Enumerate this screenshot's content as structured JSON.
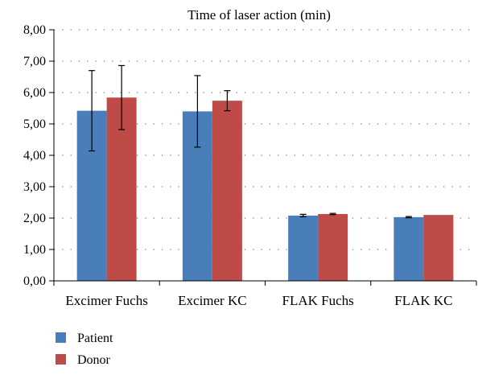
{
  "chart_data": {
    "type": "bar",
    "title": "Time of laser action (min)",
    "xlabel": "",
    "ylabel": "",
    "categories": [
      "Excimer Fuchs",
      "Excimer KC",
      "FLAK Fuchs",
      "FLAK KC"
    ],
    "series": [
      {
        "name": "Patient",
        "color": "#4a7ebb",
        "values": [
          5.42,
          5.4,
          2.08,
          2.03
        ],
        "error": [
          1.28,
          1.14,
          0.04,
          0.02
        ]
      },
      {
        "name": "Donor",
        "color": "#be4b48",
        "values": [
          5.84,
          5.74,
          2.13,
          2.1
        ],
        "error": [
          1.02,
          0.32,
          0.02,
          0
        ]
      }
    ],
    "ylim": [
      0,
      8
    ],
    "yticks": [
      0,
      1,
      2,
      3,
      4,
      5,
      6,
      7,
      8
    ],
    "ytick_labels": [
      "0,00",
      "1,00",
      "2,00",
      "3,00",
      "4,00",
      "5,00",
      "6,00",
      "7,00",
      "8,00"
    ],
    "grid": "horizontal-dotted",
    "legend_position": "bottom-left"
  }
}
